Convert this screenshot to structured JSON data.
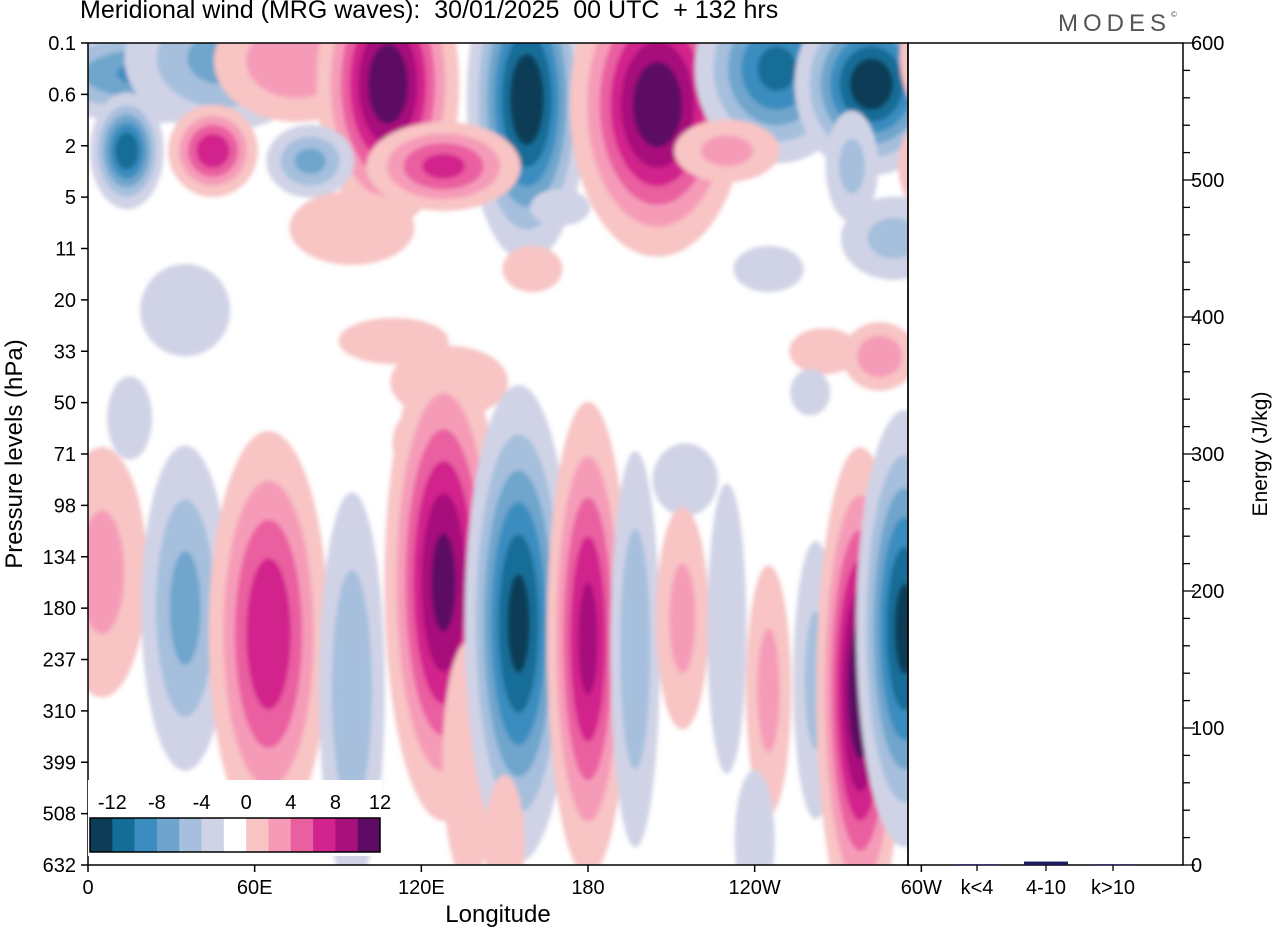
{
  "title": "Meridional wind (MRG waves):  30/01/2025  00 UTC  + 132 hrs",
  "logo": "MODES",
  "logo_mark": "©",
  "colors": {
    "neg": [
      "#0d3d57",
      "#146d97",
      "#3b8dc0",
      "#6fa5cc",
      "#a5bfdd",
      "#d0d3e6"
    ],
    "pos": [
      "#f8c4c4",
      "#f59bb8",
      "#ea5fa0",
      "#d2248c",
      "#a8107c",
      "#5c0a63"
    ],
    "energy_bar": "#1a1a5e"
  },
  "chart_data": [
    {
      "type": "heatmap",
      "title": "Meridional wind (MRG waves):  30/01/2025  00 UTC  + 132 hrs",
      "xlabel": "Longitude",
      "ylabel": "Pressure levels (hPa)",
      "x_ticks": [
        "0",
        "60E",
        "120E",
        "180",
        "120W",
        "60W"
      ],
      "y_ticks": [
        "0.1",
        "0.6",
        "2",
        "5",
        "11",
        "20",
        "33",
        "50",
        "71",
        "98",
        "134",
        "180",
        "237",
        "310",
        "399",
        "508",
        "632"
      ],
      "colorbar": {
        "labels": [
          "-12",
          "-8",
          "-4",
          "0",
          "4",
          "8",
          "12"
        ],
        "levels": [
          -14,
          -12,
          -10,
          -8,
          -6,
          -4,
          -2,
          0,
          2,
          4,
          6,
          8,
          10,
          12,
          14
        ]
      },
      "features": [
        {
          "lon": 25,
          "lev": 0.6,
          "sign": -1,
          "intensity": 9,
          "dlon": 30,
          "dlev": 0.55
        },
        {
          "lon": 48,
          "lev": 0.3,
          "sign": -1,
          "intensity": 7,
          "dlon": 22,
          "dlev": 0.9
        },
        {
          "lon": 75,
          "lev": 0.35,
          "sign": 1,
          "intensity": 6,
          "dlon": 20,
          "dlev": 0.8
        },
        {
          "lon": 108,
          "lev": 0.8,
          "sign": 1,
          "intensity": 14,
          "dlon": 13,
          "dlev": 1.4
        },
        {
          "lon": 158,
          "lev": 1.1,
          "sign": -1,
          "intensity": 14,
          "dlon": 11,
          "dlev": 1.6
        },
        {
          "lon": 205,
          "lev": 1.2,
          "sign": 1,
          "intensity": 14,
          "dlon": 16,
          "dlev": 1.5
        },
        {
          "lon": 248,
          "lev": 0.5,
          "sign": -1,
          "intensity": 11,
          "dlon": 16,
          "dlev": 1.0
        },
        {
          "lon": 282,
          "lev": 0.8,
          "sign": -1,
          "intensity": 14,
          "dlon": 14,
          "dlev": 0.9
        },
        {
          "lon": 315,
          "lev": 0.3,
          "sign": 1,
          "intensity": 12,
          "dlon": 12,
          "dlev": 0.8
        },
        {
          "lon": 14,
          "lev": 2.1,
          "sign": -1,
          "intensity": 12,
          "dlon": 7,
          "dlev": 0.6
        },
        {
          "lon": 45,
          "lev": 2.1,
          "sign": 1,
          "intensity": 10,
          "dlon": 9,
          "dlev": 0.5
        },
        {
          "lon": 80,
          "lev": 2.3,
          "sign": -1,
          "intensity": 7,
          "dlon": 10,
          "dlev": 0.45
        },
        {
          "lon": 128,
          "lev": 2.4,
          "sign": 1,
          "intensity": 9,
          "dlon": 16,
          "dlev": 0.5
        },
        {
          "lon": 230,
          "lev": 2.1,
          "sign": 1,
          "intensity": 5,
          "dlon": 14,
          "dlev": 0.45
        },
        {
          "lon": 275,
          "lev": 2.4,
          "sign": -1,
          "intensity": 5,
          "dlon": 7,
          "dlev": 0.8
        },
        {
          "lon": 305,
          "lev": 2.4,
          "sign": 1,
          "intensity": 8,
          "dlon": 8,
          "dlev": 0.6
        },
        {
          "lon": 95,
          "lev": 3.6,
          "sign": 1,
          "intensity": 3,
          "dlon": 25,
          "dlev": 0.8
        },
        {
          "lon": 170,
          "lev": 3.2,
          "sign": -1,
          "intensity": 3,
          "dlon": 12,
          "dlev": 0.4
        },
        {
          "lon": 290,
          "lev": 3.8,
          "sign": -1,
          "intensity": 5,
          "dlon": 14,
          "dlev": 0.6
        },
        {
          "lon": 160,
          "lev": 4.4,
          "sign": 1,
          "intensity": 3,
          "dlon": 12,
          "dlev": 0.5
        },
        {
          "lon": 245,
          "lev": 4.4,
          "sign": -1,
          "intensity": 3,
          "dlon": 14,
          "dlev": 0.5
        },
        {
          "lon": 35,
          "lev": 5.2,
          "sign": -1,
          "intensity": 3,
          "dlon": 18,
          "dlev": 1.0
        },
        {
          "lon": 110,
          "lev": 5.8,
          "sign": 1,
          "intensity": 3,
          "dlon": 22,
          "dlev": 0.5
        },
        {
          "lon": 130,
          "lev": 6.6,
          "sign": 1,
          "intensity": 4,
          "dlon": 18,
          "dlev": 0.6
        },
        {
          "lon": 265,
          "lev": 6.0,
          "sign": 1,
          "intensity": 3,
          "dlon": 14,
          "dlev": 0.5
        },
        {
          "lon": 285,
          "lev": 6.1,
          "sign": 1,
          "intensity": 6,
          "dlon": 9,
          "dlev": 0.45
        },
        {
          "lon": 15,
          "lev": 7.3,
          "sign": -1,
          "intensity": 3,
          "dlon": 9,
          "dlev": 0.9
        },
        {
          "lon": 260,
          "lev": 6.8,
          "sign": -1,
          "intensity": 3,
          "dlon": 8,
          "dlev": 0.5
        },
        {
          "lon": 115,
          "lev": 7.8,
          "sign": 1,
          "intensity": 3,
          "dlon": 6,
          "dlev": 0.6
        },
        {
          "lon": 215,
          "lev": 8.5,
          "sign": -1,
          "intensity": 4,
          "dlon": 10,
          "dlev": 0.6
        },
        {
          "lon": 5,
          "lev": 10.3,
          "sign": 1,
          "intensity": 5,
          "dlon": 12,
          "dlev": 1.8
        },
        {
          "lon": 35,
          "lev": 11,
          "sign": -1,
          "intensity": 7,
          "dlon": 10,
          "dlev": 2.0
        },
        {
          "lon": 65,
          "lev": 11.5,
          "sign": 1,
          "intensity": 10,
          "dlon": 12,
          "dlev": 2.2
        },
        {
          "lon": 95,
          "lev": 12.6,
          "sign": -1,
          "intensity": 6,
          "dlon": 8,
          "dlev": 2.6
        },
        {
          "lon": 128,
          "lev": 10.5,
          "sign": 1,
          "intensity": 13,
          "dlon": 11,
          "dlev": 2.4
        },
        {
          "lon": 137,
          "lev": 14,
          "sign": 1,
          "intensity": 4,
          "dlon": 8,
          "dlev": 2.0
        },
        {
          "lon": 155,
          "lev": 11.3,
          "sign": -1,
          "intensity": 13,
          "dlon": 10,
          "dlev": 2.4
        },
        {
          "lon": 180,
          "lev": 11.6,
          "sign": 1,
          "intensity": 11,
          "dlon": 8,
          "dlev": 2.5
        },
        {
          "lon": 197,
          "lev": 11.8,
          "sign": -1,
          "intensity": 6,
          "dlon": 6,
          "dlev": 2.6
        },
        {
          "lon": 214,
          "lev": 11.2,
          "sign": 1,
          "intensity": 5,
          "dlon": 7,
          "dlev": 1.6
        },
        {
          "lon": 230,
          "lev": 11.4,
          "sign": -1,
          "intensity": 4,
          "dlon": 6,
          "dlev": 2.4
        },
        {
          "lon": 245,
          "lev": 12.6,
          "sign": 1,
          "intensity": 5,
          "dlon": 6,
          "dlev": 1.8
        },
        {
          "lon": 262,
          "lev": 12.4,
          "sign": -1,
          "intensity": 5,
          "dlon": 6,
          "dlev": 2.0
        },
        {
          "lon": 278,
          "lev": 12.6,
          "sign": 1,
          "intensity": 14,
          "dlon": 8,
          "dlev": 2.4
        },
        {
          "lon": 294,
          "lev": 11.4,
          "sign": -1,
          "intensity": 13,
          "dlon": 9,
          "dlev": 2.2
        },
        {
          "lon": 311,
          "lev": 12.6,
          "sign": 1,
          "intensity": 8,
          "dlon": 5,
          "dlev": 1.8
        },
        {
          "lon": 317,
          "lev": 10,
          "sign": 1,
          "intensity": 12,
          "dlon": 6,
          "dlev": 1.2
        },
        {
          "lon": 150,
          "lev": 15.6,
          "sign": 1,
          "intensity": 3,
          "dlon": 8,
          "dlev": 1.5
        },
        {
          "lon": 240,
          "lev": 15.5,
          "sign": -1,
          "intensity": 3,
          "dlon": 8,
          "dlev": 1.5
        }
      ]
    },
    {
      "type": "bar",
      "ylabel": "Energy (J/kg)",
      "categories": [
        "k<4",
        "4-10",
        "k>10"
      ],
      "values": [
        0.5,
        2.5,
        0.5
      ],
      "ylim": [
        0,
        600
      ],
      "y_ticks": [
        "0",
        "100",
        "200",
        "300",
        "400",
        "500",
        "600"
      ]
    }
  ]
}
